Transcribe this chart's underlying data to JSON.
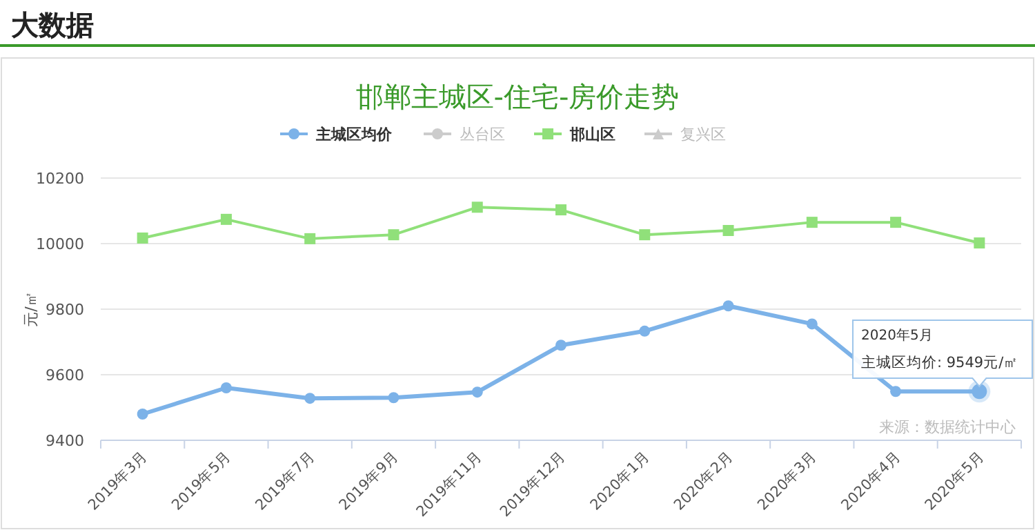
{
  "chart_data": {
    "type": "line",
    "title": "邯郸主城区-住宅-房价走势",
    "ylabel": "元/㎡",
    "categories": [
      "2019年3月",
      "2019年5月",
      "2019年7月",
      "2019年9月",
      "2019年11月",
      "2019年12月",
      "2020年1月",
      "2020年2月",
      "2020年3月",
      "2020年4月",
      "2020年5月"
    ],
    "series": [
      {
        "name": "主城区均价",
        "color": "#7cb2e8",
        "marker": "circle",
        "values": [
          9480,
          9560,
          9528,
          9530,
          9547,
          9690,
          9733,
          9810,
          9755,
          9549,
          9549
        ]
      },
      {
        "name": "丛台区",
        "color": "#cccccc",
        "marker": "circle",
        "values": [
          null,
          null,
          null,
          null,
          null,
          null,
          null,
          null,
          null,
          null,
          null
        ]
      },
      {
        "name": "邯山区",
        "color": "#90e07a",
        "marker": "square",
        "values": [
          10017,
          10074,
          10015,
          10027,
          10111,
          10103,
          10027,
          10040,
          10065,
          10065,
          10002
        ]
      },
      {
        "name": "复兴区",
        "color": "#cccccc",
        "marker": "triangle",
        "values": [
          null,
          null,
          null,
          null,
          null,
          null,
          null,
          null,
          null,
          null,
          null
        ]
      }
    ],
    "ylim": [
      9400,
      10200
    ],
    "yticks": [
      9400,
      9600,
      9800,
      10000,
      10200
    ],
    "grid": "y",
    "legend": "top",
    "annotations": [
      "大数据",
      "来源：数据统计中心",
      "2020年5月",
      "主城区均价: 9549元/㎡"
    ]
  }
}
